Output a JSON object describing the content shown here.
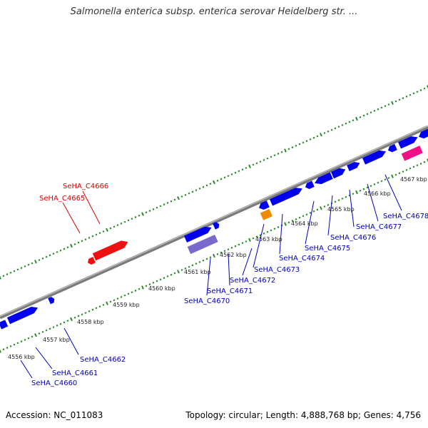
{
  "title": "Salmonella enterica subsp. enterica serovar Heidelberg str. ...",
  "footer": {
    "accession": "Accession: NC_011083",
    "summary": "Topology: circular; Length: 4,888,768 bp; Genes: 4,756"
  },
  "colors": {
    "backbone": "#8a8a8a",
    "tick": "#2a8a2a",
    "forward_gene": "#0000ee",
    "reverse_gene": "#0000ee",
    "rrna_gene": "#ee1111",
    "pseudo_gene": "#7b68cc",
    "orange_feature": "#ee8a00",
    "pink_feature": "#ee1188",
    "label_red": "#dd0000",
    "label_blue": "#0000bb"
  },
  "kbp_labels": [
    "4556 kbp",
    "4557 kbp",
    "4558 kbp",
    "4559 kbp",
    "4560 kbp",
    "4561 kbp",
    "4562 kbp",
    "4563 kbp",
    "4564 kbp",
    "4565 kbp",
    "4566 kbp",
    "4567 kbp"
  ],
  "gene_labels": {
    "red": [
      "SeHA_C4666",
      "SeHA_C4665"
    ],
    "blue": [
      "SeHA_C4660",
      "SeHA_C4661",
      "SeHA_C4662",
      "SeHA_C4670",
      "SeHA_C4671",
      "SeHA_C4672",
      "SeHA_C4673",
      "SeHA_C4674",
      "SeHA_C4675",
      "SeHA_C4676",
      "SeHA_C4677",
      "SeHA_C4678"
    ]
  }
}
